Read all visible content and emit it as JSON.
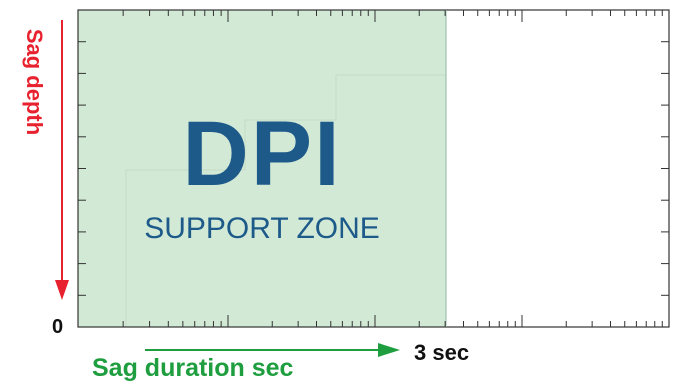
{
  "zone": {
    "title": "DPI",
    "subtitle": "SUPPORT ZONE",
    "fill_color": "#d2e9d6",
    "title_color": "#1d5a8a"
  },
  "axes": {
    "y_label": "Sag depth",
    "x_label": "Sag duration sec",
    "origin_label": "0",
    "x_end_label": "3 sec",
    "y_arrow_color": "#e8212e",
    "x_arrow_color": "#1e9e3e"
  }
}
